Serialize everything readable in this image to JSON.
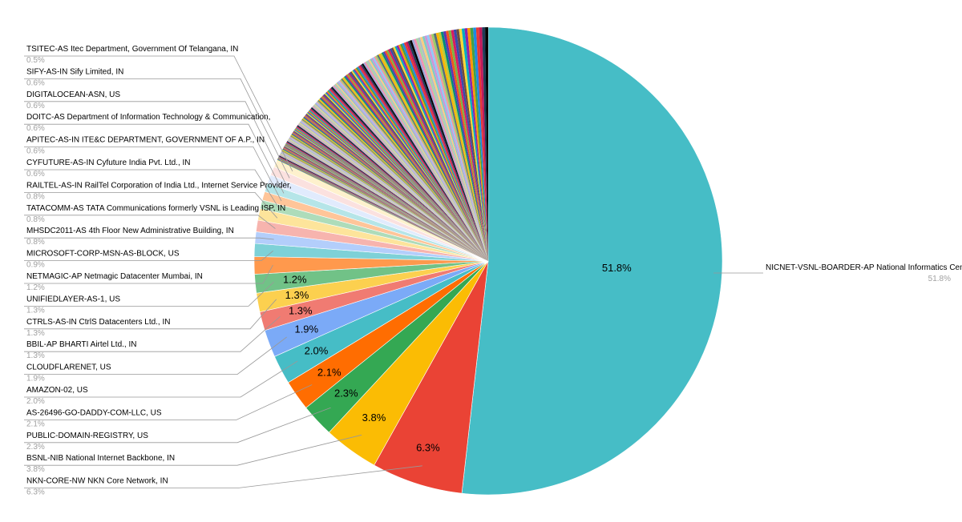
{
  "chart_data": {
    "type": "pie",
    "title": "",
    "slices": [
      {
        "name": "NICNET-VSNL-BOARDER-AP National Informatics Centre, IN",
        "value": 51.8,
        "label": "51.8%",
        "color": "#46bdc6"
      },
      {
        "name": "NKN-CORE-NW NKN Core Network, IN",
        "value": 6.3,
        "label": "6.3%",
        "color": "#ea4335"
      },
      {
        "name": "BSNL-NIB National Internet Backbone, IN",
        "value": 3.8,
        "label": "3.8%",
        "color": "#fbbc04"
      },
      {
        "name": "PUBLIC-DOMAIN-REGISTRY, US",
        "value": 2.3,
        "label": "2.3%",
        "color": "#34a853"
      },
      {
        "name": "AS-26496-GO-DADDY-COM-LLC, US",
        "value": 2.1,
        "label": "2.1%",
        "color": "#ff6d01"
      },
      {
        "name": "AMAZON-02, US",
        "value": 2.0,
        "label": "2.0%",
        "color": "#46bdc6"
      },
      {
        "name": "CLOUDFLARENET, US",
        "value": 1.9,
        "label": "1.9%",
        "color": "#7baaf7"
      },
      {
        "name": "BBIL-AP BHARTI Airtel Ltd., IN",
        "value": 1.3,
        "label": "1.3%",
        "color": "#f07b72"
      },
      {
        "name": "CTRLS-AS-IN CtrlS Datacenters Ltd., IN",
        "value": 1.3,
        "label": "1.3%",
        "color": "#fcd04f"
      },
      {
        "name": "UNIFIEDLAYER-AS-1, US",
        "value": 1.3,
        "label": "1.3%",
        "color": "#71c287"
      },
      {
        "name": "NETMAGIC-AP Netmagic Datacenter Mumbai, IN",
        "value": 1.2,
        "label": "1.2%",
        "color": "#ff994d"
      },
      {
        "name": "MICROSOFT-CORP-MSN-AS-BLOCK, US",
        "value": 0.9,
        "label": "0.9%",
        "color": "#7ed1d7"
      },
      {
        "name": "MHSDC2011-AS 4th Floor New Administrative Building, IN",
        "value": 0.8,
        "label": "0.8%",
        "color": "#b3cefb"
      },
      {
        "name": "TATACOMM-AS TATA Communications formerly VSNL is Leading ISP, IN",
        "value": 0.8,
        "label": "0.8%",
        "color": "#f7b4ae"
      },
      {
        "name": "RAILTEL-AS-IN RailTel Corporation of India Ltd., Internet Service Provider,",
        "value": 0.8,
        "label": "0.8%",
        "color": "#fde49b"
      },
      {
        "name": "CYFUTURE-AS-IN Cyfuture India Pvt. Ltd., IN",
        "value": 0.6,
        "label": "0.6%",
        "color": "#aedcba"
      },
      {
        "name": "APITEC-AS-IN ITE&C DEPARTMENT, GOVERNMENT OF A.P., IN",
        "value": 0.6,
        "label": "0.6%",
        "color": "#ffc599"
      },
      {
        "name": "DOITC-AS Department of Information Technology & Communication,",
        "value": 0.6,
        "label": "0.6%",
        "color": "#b5e5e8"
      },
      {
        "name": "DIGITALOCEAN-ASN, US",
        "value": 0.6,
        "label": "0.6%",
        "color": "#e1ebfd"
      },
      {
        "name": "SIFY-AS-IN Sify Limited, IN",
        "value": 0.6,
        "label": "0.6%",
        "color": "#fbe1df"
      },
      {
        "name": "TSITEC-AS Itec Department, Government Of Telangana, IN",
        "value": 0.5,
        "label": "0.5%",
        "color": "#fef1cd"
      }
    ],
    "other_slices_count": 220,
    "other_slices_total": 17.9,
    "other_palette": [
      "#000000",
      "#1f3b57",
      "#c2185b",
      "#e53935",
      "#1e88e5",
      "#43a047",
      "#ff9800",
      "#8e24aa",
      "#00acc1",
      "#fdd835",
      "#6d4c41",
      "#3949ab",
      "#d81b60",
      "#7cb342",
      "#f4511e",
      "#5e35b1",
      "#00897b",
      "#c0ca33",
      "#ffb300",
      "#546e7a",
      "#9ccc65",
      "#ef9a9a",
      "#90caf9",
      "#ce93d8",
      "#80cbc4",
      "#ffcc80",
      "#b0bec5",
      "#a5d6a7",
      "#f48fb1",
      "#9fa8da"
    ],
    "inside_labels": [
      "51.8%",
      "6.3%",
      "3.8%",
      "2.3%",
      "2.1%",
      "2.0%",
      "1.9%",
      "1.3%",
      "1.3%",
      "1.2%"
    ],
    "legend": "callouts-left-and-right"
  }
}
